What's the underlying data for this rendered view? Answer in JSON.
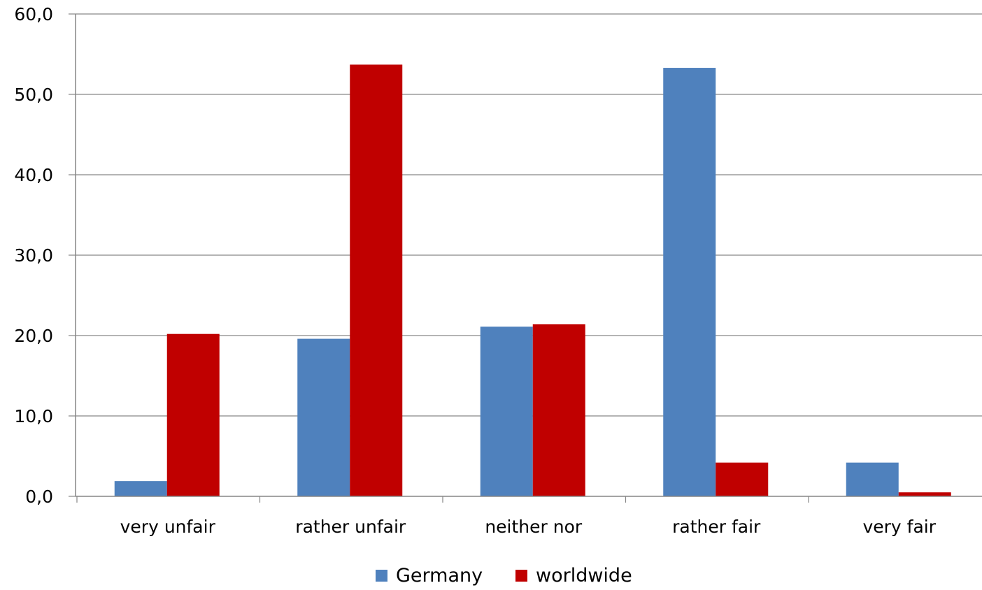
{
  "chart_data": {
    "type": "bar",
    "title": "",
    "xlabel": "",
    "ylabel": "",
    "categories": [
      "very unfair",
      "rather unfair",
      "neither nor",
      "rather fair",
      "very fair"
    ],
    "series": [
      {
        "name": "Germany",
        "color": "#4f81bd",
        "values": [
          1.9,
          19.6,
          21.1,
          53.3,
          4.2
        ]
      },
      {
        "name": "worldwide",
        "color": "#c00000",
        "values": [
          20.2,
          53.7,
          21.4,
          4.2,
          0.5
        ]
      }
    ],
    "ylim": [
      0,
      60
    ],
    "yticks": [
      "0,0",
      "10,0",
      "20,0",
      "30,0",
      "40,0",
      "50,0",
      "60,0"
    ],
    "grid": true,
    "legend": "bottom"
  }
}
